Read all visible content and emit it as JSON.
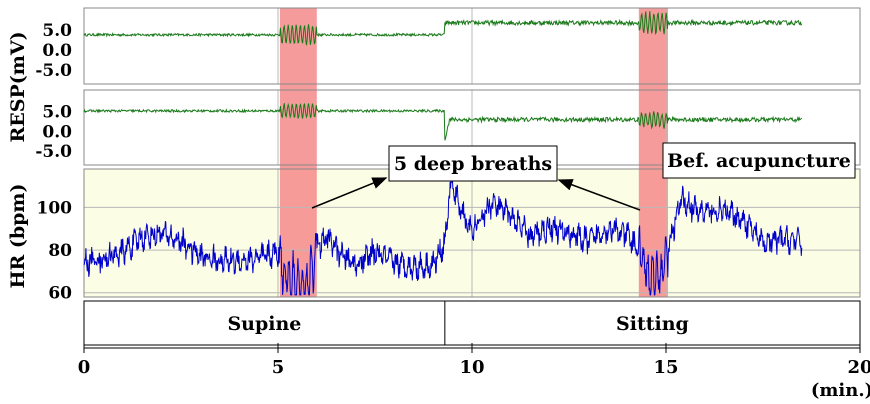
{
  "chart_data": {
    "type": "line",
    "x_unit_label": "(min.)",
    "x_ticks": [
      0,
      5,
      10,
      15,
      20
    ],
    "xlim": [
      0,
      20
    ],
    "data_end_min": 18.5,
    "resp_label": "RESP(mV)",
    "hr_label": "HR (bpm)",
    "resp_ticks": [
      "5.0",
      "0.0",
      "-5.0"
    ],
    "hr_ticks": [
      100,
      80,
      60
    ],
    "hr_ylim": [
      58,
      118
    ],
    "deep_breath_intervals": [
      [
        5.05,
        6.0
      ],
      [
        14.3,
        15.05
      ]
    ],
    "shift_min": 9.3,
    "phases": [
      {
        "label": "Supine",
        "start": 0,
        "end": 9.3
      },
      {
        "label": "Sitting",
        "start": 9.3,
        "end": 20
      }
    ],
    "annotations": [
      {
        "text": "5 deep breaths"
      },
      {
        "text": "Bef. acupuncture"
      }
    ],
    "hr_series": {
      "name": "",
      "x": [
        0,
        0.5,
        1,
        1.5,
        2,
        2.5,
        3,
        3.5,
        4,
        4.5,
        5,
        5.2,
        5.5,
        5.8,
        6,
        6.3,
        6.6,
        7,
        7.5,
        8,
        8.5,
        9,
        9.3,
        9.45,
        9.7,
        10,
        10.5,
        11,
        11.5,
        12,
        12.5,
        13,
        13.5,
        14,
        14.3,
        14.6,
        14.9,
        15.1,
        15.4,
        15.8,
        16.5,
        17,
        17.5,
        18,
        18.5
      ],
      "y": [
        74,
        76,
        79,
        86,
        88,
        84,
        77,
        75,
        75,
        76,
        79,
        68,
        63,
        66,
        81,
        86,
        78,
        73,
        79,
        74,
        72,
        73,
        84,
        111,
        100,
        88,
        102,
        96,
        86,
        91,
        88,
        84,
        90,
        87,
        80,
        66,
        70,
        84,
        104,
        98,
        98,
        94,
        83,
        85,
        84
      ]
    },
    "resp_series": [
      {
        "name": "",
        "base_before": 3.8,
        "base_after": 6.8,
        "jump_to": 6.8,
        "dip_to": 6.8,
        "deep_amp": 2.4,
        "ylim": [
          -8.5,
          10.5
        ]
      },
      {
        "name": "",
        "base_before": 5.2,
        "base_after": 3.0,
        "jump_to": 5.2,
        "dip_to": -2.0,
        "deep_amp": 1.8,
        "ylim": [
          -8.5,
          10.5
        ]
      }
    ],
    "colors": {
      "hr_line": "#0000cc",
      "resp_line": "#1a7a1a",
      "band": "#f58a8a",
      "hr_bg": "#fbfde4",
      "grid": "#b8b8b8"
    }
  }
}
